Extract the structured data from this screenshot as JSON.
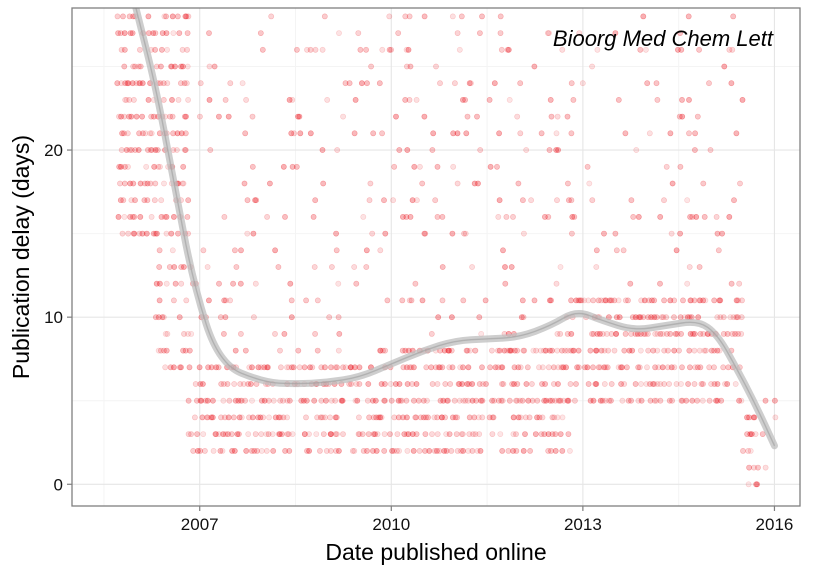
{
  "chart_data": {
    "type": "scatter",
    "title": "",
    "annotation": "Bioorg Med Chem Lett",
    "xlabel": "Date published online",
    "ylabel": "Publication delay (days)",
    "xlim": [
      2005.0,
      2016.4
    ],
    "ylim": [
      -1.3,
      28.5
    ],
    "x_ticks": [
      {
        "value": 2007,
        "label": "2007"
      },
      {
        "value": 2010,
        "label": "2010"
      },
      {
        "value": 2013,
        "label": "2013"
      },
      {
        "value": 2016,
        "label": "2016"
      }
    ],
    "y_ticks": [
      {
        "value": 0,
        "label": "0"
      },
      {
        "value": 10,
        "label": "10"
      },
      {
        "value": 20,
        "label": "20"
      }
    ],
    "grid": true,
    "point_color": "#e8000b",
    "smooth_color": "#bdbdbd",
    "series": [
      {
        "type": "scatter",
        "description": "per-article delays at integer days, dense vertical bands by date",
        "clusters": [
          {
            "x_range": [
              2005.7,
              2006.8
            ],
            "y_range": [
              15,
              28
            ],
            "density": "high"
          },
          {
            "x_range": [
              2006.3,
              2006.8
            ],
            "y_range": [
              7,
              15
            ],
            "density": "medium"
          },
          {
            "x_range": [
              2006.8,
              2009.8
            ],
            "y_range": [
              2,
              7
            ],
            "density": "high"
          },
          {
            "x_range": [
              2006.8,
              2009.8
            ],
            "y_range": [
              8,
              28
            ],
            "density": "low"
          },
          {
            "x_range": [
              2009.8,
              2012.8
            ],
            "y_range": [
              2,
              8
            ],
            "density": "high"
          },
          {
            "x_range": [
              2009.8,
              2012.8
            ],
            "y_range": [
              8,
              28
            ],
            "density": "low"
          },
          {
            "x_range": [
              2012.8,
              2015.5
            ],
            "y_range": [
              5,
              11
            ],
            "density": "high"
          },
          {
            "x_range": [
              2012.8,
              2015.5
            ],
            "y_range": [
              11,
              28
            ],
            "density": "low"
          },
          {
            "x_range": [
              2015.5,
              2016.0
            ],
            "y_range": [
              0,
              5
            ],
            "density": "medium"
          }
        ]
      },
      {
        "type": "line",
        "description": "smoothed trend with confidence band",
        "x": [
          2006.0,
          2006.3,
          2006.6,
          2006.9,
          2007.3,
          2008.0,
          2008.5,
          2009.0,
          2009.5,
          2010.0,
          2010.5,
          2011.0,
          2011.5,
          2012.0,
          2012.5,
          2012.9,
          2013.3,
          2013.8,
          2014.3,
          2014.8,
          2015.1,
          2015.4,
          2015.7,
          2016.0
        ],
        "y": [
          28.5,
          24.0,
          18.0,
          12.0,
          7.2,
          6.1,
          6.0,
          6.1,
          6.4,
          7.2,
          8.0,
          8.6,
          8.7,
          8.8,
          9.5,
          10.4,
          9.8,
          9.2,
          9.5,
          9.8,
          9.0,
          7.0,
          4.8,
          2.3
        ]
      }
    ]
  }
}
